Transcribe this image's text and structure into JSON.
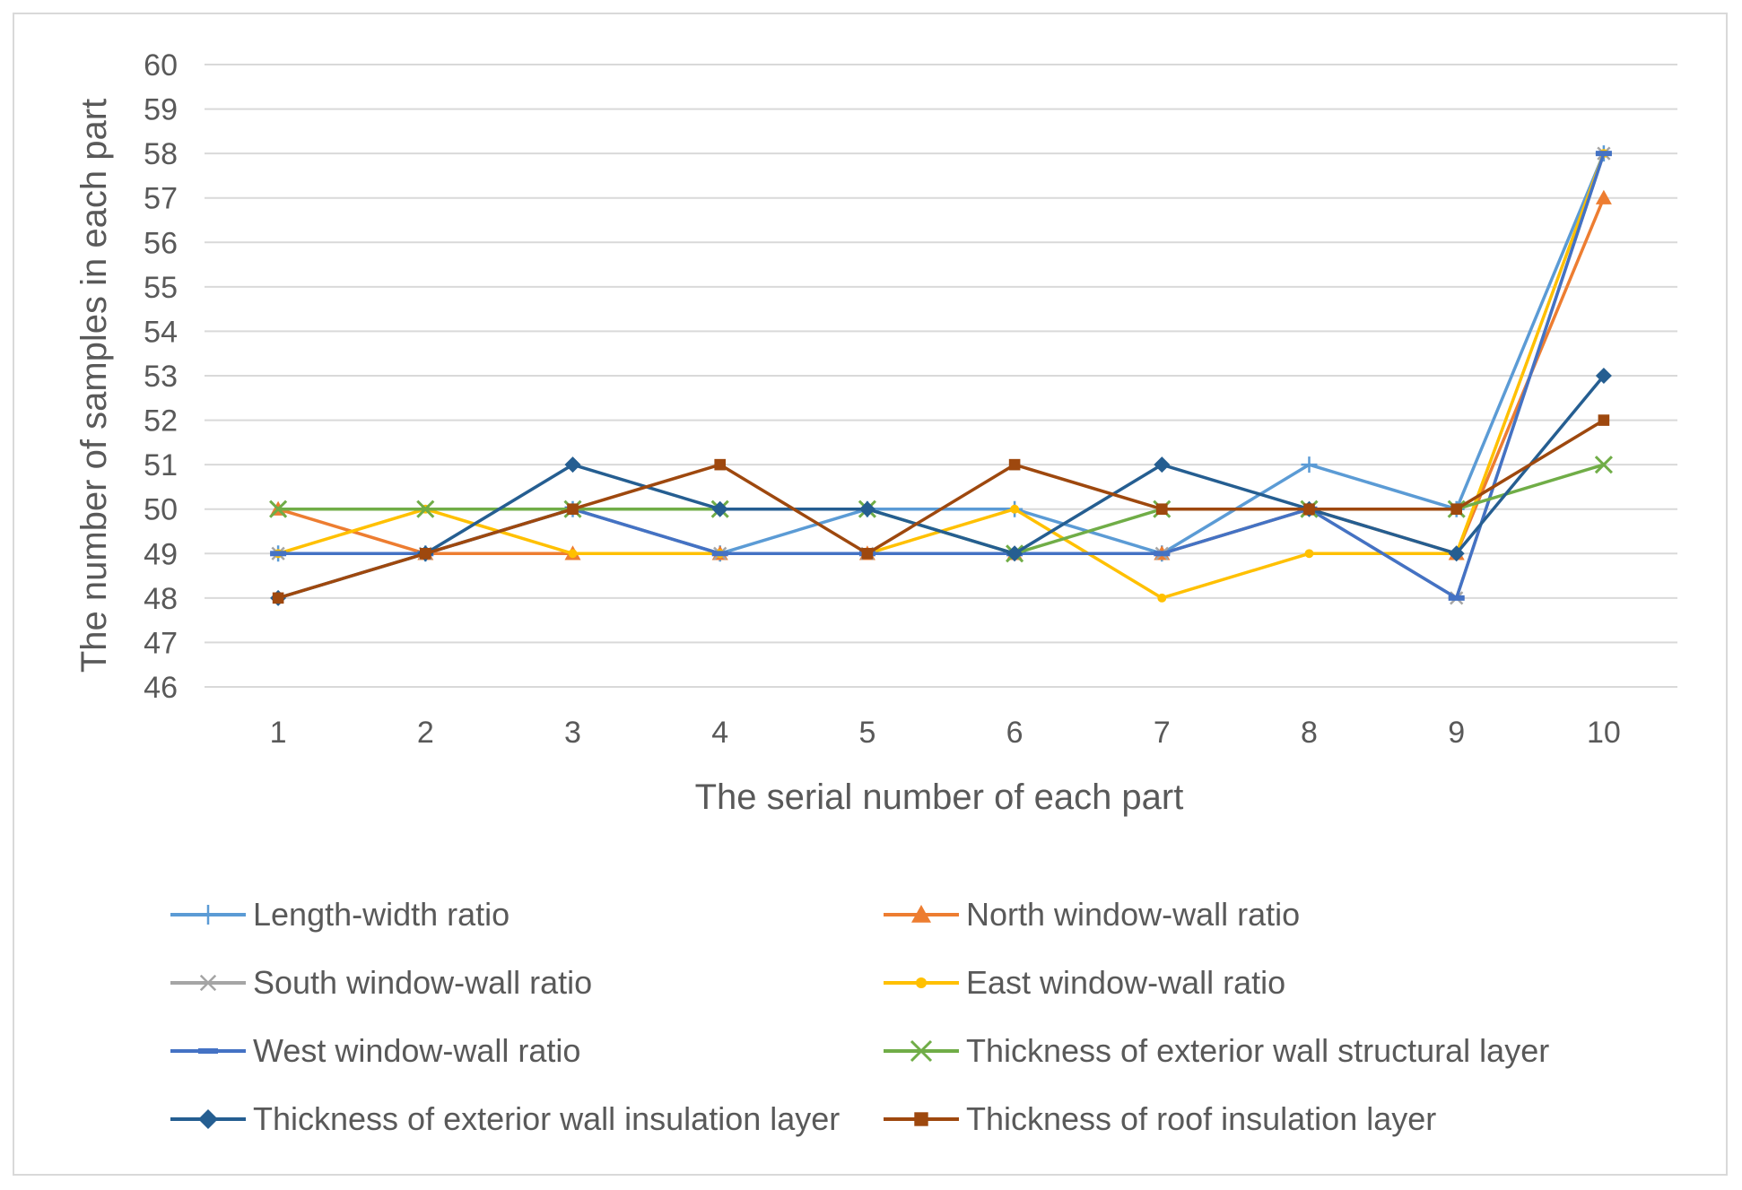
{
  "chart_data": {
    "type": "line",
    "title": "",
    "xlabel": "The serial number of each part",
    "ylabel": "The number of samples in each part",
    "categories": [
      "1",
      "2",
      "3",
      "4",
      "5",
      "6",
      "7",
      "8",
      "9",
      "10"
    ],
    "ylim": [
      46,
      60
    ],
    "yticks": [
      "46",
      "47",
      "48",
      "49",
      "50",
      "51",
      "52",
      "53",
      "54",
      "55",
      "56",
      "57",
      "58",
      "59",
      "60"
    ],
    "grid": true,
    "legend_position": "bottom",
    "series": [
      {
        "name": "Length-width ratio",
        "color": "#5b9bd5",
        "marker": "plus",
        "values": [
          49,
          49,
          50,
          49,
          50,
          50,
          49,
          51,
          50,
          58
        ]
      },
      {
        "name": "North window-wall ratio",
        "color": "#ed7d31",
        "marker": "triangle",
        "values": [
          50,
          49,
          49,
          49,
          49,
          49,
          49,
          50,
          49,
          57
        ]
      },
      {
        "name": "South window-wall ratio",
        "color": "#a5a5a5",
        "marker": "asterisk",
        "values": [
          49,
          49,
          50,
          49,
          49,
          49,
          49,
          50,
          48,
          58
        ]
      },
      {
        "name": "East window-wall ratio",
        "color": "#ffc000",
        "marker": "circle",
        "values": [
          49,
          50,
          49,
          49,
          49,
          50,
          48,
          49,
          49,
          58
        ]
      },
      {
        "name": "West window-wall ratio",
        "color": "#4472c4",
        "marker": "dash",
        "values": [
          49,
          49,
          50,
          49,
          49,
          49,
          49,
          50,
          48,
          58
        ]
      },
      {
        "name": "Thickness of exterior wall structural layer",
        "color": "#70ad47",
        "marker": "x",
        "values": [
          50,
          50,
          50,
          50,
          50,
          49,
          50,
          50,
          50,
          51
        ]
      },
      {
        "name": "Thickness of exterior wall insulation layer",
        "color": "#255e91",
        "marker": "diamond",
        "values": [
          48,
          49,
          51,
          50,
          50,
          49,
          51,
          50,
          49,
          53
        ]
      },
      {
        "name": "Thickness of roof insulation layer",
        "color": "#9e480e",
        "marker": "square",
        "values": [
          48,
          49,
          50,
          51,
          49,
          51,
          50,
          50,
          50,
          52
        ]
      }
    ]
  }
}
